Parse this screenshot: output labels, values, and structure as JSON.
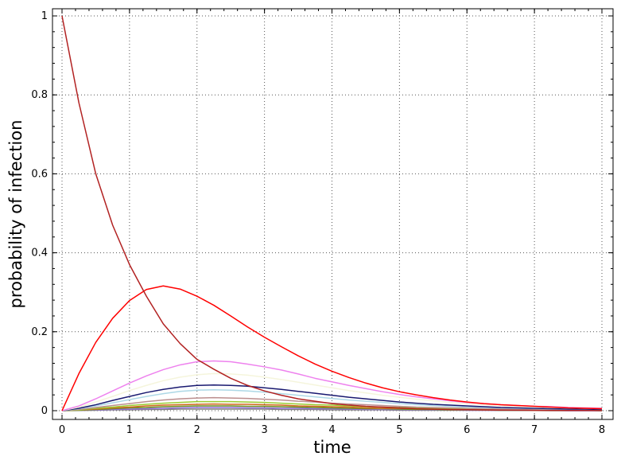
{
  "chart_data": {
    "type": "line",
    "title": "",
    "xlabel": "time",
    "ylabel": "probability of infection",
    "xlim": [
      0,
      8
    ],
    "ylim": [
      0,
      1
    ],
    "xticks": [
      "0",
      "1",
      "2",
      "3",
      "4",
      "5",
      "6",
      "7",
      "8"
    ],
    "yticks": [
      "0",
      "0.2",
      "0.4",
      "0.6",
      "0.8",
      "1"
    ],
    "grid": true,
    "legend": "none",
    "x": [
      0,
      0.25,
      0.5,
      0.75,
      1,
      1.25,
      1.5,
      1.75,
      2,
      2.25,
      2.5,
      2.75,
      3,
      3.25,
      3.5,
      3.75,
      4,
      4.25,
      4.5,
      4.75,
      5,
      5.25,
      5.5,
      5.75,
      6,
      6.25,
      6.5,
      6.75,
      7,
      7.25,
      7.5,
      7.75,
      8
    ],
    "series": [
      {
        "color": "#b22222",
        "values": [
          1.0,
          0.78,
          0.6,
          0.47,
          0.37,
          0.29,
          0.22,
          0.17,
          0.13,
          0.105,
          0.082,
          0.064,
          0.05,
          0.039,
          0.03,
          0.024,
          0.018,
          0.014,
          0.011,
          0.009,
          0.007,
          0.005,
          0.004,
          0.003,
          0.0025,
          0.002,
          0.0015,
          0.0012,
          0.0009,
          0.0007,
          0.0005,
          0.0004,
          0.0003
        ]
      },
      {
        "color": "#ff0000",
        "values": [
          0.0,
          0.094,
          0.173,
          0.234,
          0.279,
          0.307,
          0.316,
          0.308,
          0.29,
          0.267,
          0.24,
          0.212,
          0.186,
          0.162,
          0.139,
          0.118,
          0.1,
          0.084,
          0.07,
          0.058,
          0.048,
          0.04,
          0.033,
          0.027,
          0.022,
          0.018,
          0.015,
          0.013,
          0.011,
          0.009,
          0.007,
          0.006,
          0.005
        ]
      },
      {
        "color": "#ee82ee",
        "values": [
          0.0,
          0.012,
          0.03,
          0.05,
          0.07,
          0.088,
          0.104,
          0.116,
          0.124,
          0.126,
          0.124,
          0.118,
          0.111,
          0.103,
          0.093,
          0.082,
          0.073,
          0.064,
          0.056,
          0.048,
          0.041,
          0.035,
          0.03,
          0.025,
          0.021,
          0.018,
          0.015,
          0.013,
          0.011,
          0.01,
          0.008,
          0.007,
          0.006
        ]
      },
      {
        "color": "#f5f5dc",
        "values": [
          0.0,
          0.009,
          0.022,
          0.036,
          0.051,
          0.064,
          0.076,
          0.085,
          0.091,
          0.094,
          0.093,
          0.09,
          0.085,
          0.079,
          0.072,
          0.065,
          0.058,
          0.051,
          0.045,
          0.039,
          0.034,
          0.029,
          0.025,
          0.021,
          0.018,
          0.015,
          0.013,
          0.011,
          0.009,
          0.008,
          0.007,
          0.006,
          0.005
        ]
      },
      {
        "color": "#191970",
        "values": [
          0.0,
          0.006,
          0.015,
          0.026,
          0.036,
          0.046,
          0.054,
          0.06,
          0.064,
          0.065,
          0.064,
          0.062,
          0.058,
          0.054,
          0.049,
          0.044,
          0.039,
          0.034,
          0.03,
          0.026,
          0.022,
          0.019,
          0.016,
          0.014,
          0.012,
          0.01,
          0.008,
          0.007,
          0.006,
          0.005,
          0.004,
          0.004,
          0.003
        ]
      },
      {
        "color": "#add8e6",
        "values": [
          0.0,
          0.005,
          0.012,
          0.02,
          0.028,
          0.036,
          0.043,
          0.049,
          0.052,
          0.053,
          0.052,
          0.05,
          0.047,
          0.043,
          0.039,
          0.035,
          0.031,
          0.027,
          0.024,
          0.021,
          0.018,
          0.015,
          0.013,
          0.011,
          0.009,
          0.008,
          0.007,
          0.006,
          0.005,
          0.004,
          0.003,
          0.003,
          0.002
        ]
      },
      {
        "color": "#bc8f8f",
        "values": [
          0.0,
          0.003,
          0.008,
          0.013,
          0.018,
          0.023,
          0.027,
          0.03,
          0.032,
          0.033,
          0.032,
          0.031,
          0.029,
          0.027,
          0.024,
          0.022,
          0.019,
          0.017,
          0.015,
          0.013,
          0.011,
          0.009,
          0.008,
          0.007,
          0.006,
          0.005,
          0.004,
          0.003,
          0.003,
          0.002,
          0.002,
          0.002,
          0.001
        ]
      },
      {
        "color": "#9acd32",
        "values": [
          0.0,
          0.002,
          0.006,
          0.009,
          0.013,
          0.016,
          0.019,
          0.021,
          0.023,
          0.023,
          0.023,
          0.022,
          0.021,
          0.019,
          0.017,
          0.015,
          0.014,
          0.012,
          0.01,
          0.009,
          0.008,
          0.007,
          0.006,
          0.005,
          0.004,
          0.003,
          0.003,
          0.002,
          0.002,
          0.002,
          0.001,
          0.001,
          0.001
        ]
      },
      {
        "color": "#d2691e",
        "values": [
          0.0,
          0.002,
          0.004,
          0.007,
          0.009,
          0.012,
          0.014,
          0.015,
          0.016,
          0.017,
          0.016,
          0.016,
          0.015,
          0.014,
          0.012,
          0.011,
          0.01,
          0.009,
          0.007,
          0.006,
          0.006,
          0.005,
          0.004,
          0.003,
          0.003,
          0.002,
          0.002,
          0.002,
          0.001,
          0.001,
          0.001,
          0.001,
          0.001
        ]
      },
      {
        "color": "#6b8e23",
        "values": [
          0.0,
          0.001,
          0.003,
          0.005,
          0.007,
          0.008,
          0.01,
          0.011,
          0.012,
          0.012,
          0.012,
          0.011,
          0.011,
          0.01,
          0.009,
          0.008,
          0.007,
          0.006,
          0.005,
          0.005,
          0.004,
          0.003,
          0.003,
          0.002,
          0.002,
          0.002,
          0.001,
          0.001,
          0.001,
          0.001,
          0.001,
          0.001,
          0.0
        ]
      },
      {
        "color": "#9370db",
        "values": [
          0.0,
          0.001,
          0.002,
          0.003,
          0.004,
          0.005,
          0.006,
          0.007,
          0.008,
          0.008,
          0.008,
          0.007,
          0.007,
          0.006,
          0.006,
          0.005,
          0.005,
          0.004,
          0.003,
          0.003,
          0.003,
          0.002,
          0.002,
          0.002,
          0.001,
          0.001,
          0.001,
          0.001,
          0.001,
          0.001,
          0.0,
          0.0,
          0.0
        ]
      },
      {
        "color": "#808080",
        "values": [
          0.0,
          0.0005,
          0.001,
          0.002,
          0.002,
          0.003,
          0.003,
          0.004,
          0.004,
          0.004,
          0.004,
          0.004,
          0.004,
          0.003,
          0.003,
          0.003,
          0.002,
          0.002,
          0.002,
          0.002,
          0.001,
          0.001,
          0.001,
          0.001,
          0.001,
          0.001,
          0.0005,
          0.0005,
          0.0005,
          0.0,
          0.0,
          0.0,
          0.0
        ]
      }
    ]
  }
}
